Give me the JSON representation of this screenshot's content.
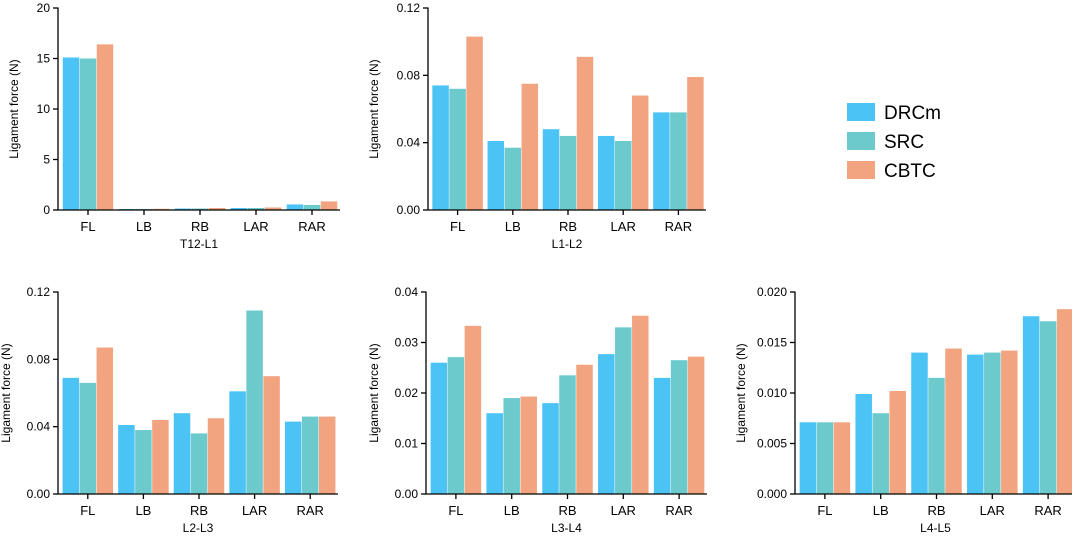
{
  "series_colors": {
    "DRCm": "#4CC3F5",
    "SRC": "#6CCACC",
    "CBTC": "#F2A481"
  },
  "legend": [
    "DRCm",
    "SRC",
    "CBTC"
  ],
  "chart_data": [
    {
      "type": "bar",
      "title": "T12-L1",
      "ylabel": "Ligament force  (N)",
      "ylim": [
        0,
        20
      ],
      "yticks": [
        "0",
        "5",
        "10",
        "15",
        "20"
      ],
      "categories": [
        "FL",
        "LB",
        "RB",
        "LAR",
        "RAR"
      ],
      "series": [
        {
          "name": "DRCm",
          "values": [
            15.1,
            0.1,
            0.15,
            0.2,
            0.55
          ]
        },
        {
          "name": "SRC",
          "values": [
            15.0,
            0.1,
            0.15,
            0.2,
            0.5
          ]
        },
        {
          "name": "CBTC",
          "values": [
            16.4,
            0.12,
            0.2,
            0.25,
            0.85
          ]
        }
      ]
    },
    {
      "type": "bar",
      "title": "L1-L2",
      "ylabel": "Ligament force  (N)",
      "ylim": [
        0,
        0.12
      ],
      "yticks": [
        "0.00",
        "0.04",
        "0.08",
        "0.12"
      ],
      "categories": [
        "FL",
        "LB",
        "RB",
        "LAR",
        "RAR"
      ],
      "series": [
        {
          "name": "DRCm",
          "values": [
            0.074,
            0.041,
            0.048,
            0.044,
            0.058
          ]
        },
        {
          "name": "SRC",
          "values": [
            0.072,
            0.037,
            0.044,
            0.041,
            0.058
          ]
        },
        {
          "name": "CBTC",
          "values": [
            0.103,
            0.075,
            0.091,
            0.068,
            0.079
          ]
        }
      ]
    },
    {
      "type": "bar",
      "title": "L2-L3",
      "ylabel": "Ligament force  (N)",
      "ylim": [
        0,
        0.12
      ],
      "yticks": [
        "0.00",
        "0.04",
        "0.08",
        "0.12"
      ],
      "categories": [
        "FL",
        "LB",
        "RB",
        "LAR",
        "RAR"
      ],
      "series": [
        {
          "name": "DRCm",
          "values": [
            0.069,
            0.041,
            0.048,
            0.061,
            0.043
          ]
        },
        {
          "name": "SRC",
          "values": [
            0.066,
            0.038,
            0.036,
            0.109,
            0.046
          ]
        },
        {
          "name": "CBTC",
          "values": [
            0.087,
            0.044,
            0.045,
            0.07,
            0.046
          ]
        }
      ]
    },
    {
      "type": "bar",
      "title": "L3-L4",
      "ylabel": "Ligament force  (N)",
      "ylim": [
        0,
        0.04
      ],
      "yticks": [
        "0.00",
        "0.01",
        "0.02",
        "0.03",
        "0.04"
      ],
      "categories": [
        "FL",
        "LB",
        "RB",
        "LAR",
        "RAR"
      ],
      "series": [
        {
          "name": "DRCm",
          "values": [
            0.026,
            0.016,
            0.018,
            0.0277,
            0.023
          ]
        },
        {
          "name": "SRC",
          "values": [
            0.0271,
            0.019,
            0.0235,
            0.033,
            0.0265
          ]
        },
        {
          "name": "CBTC",
          "values": [
            0.0333,
            0.0193,
            0.0256,
            0.0353,
            0.0272
          ]
        }
      ]
    },
    {
      "type": "bar",
      "title": "L4-L5",
      "ylabel": "Ligament force  (N)",
      "ylim": [
        0,
        0.02
      ],
      "yticks": [
        "0.000",
        "0.005",
        "0.010",
        "0.015",
        "0.020"
      ],
      "categories": [
        "FL",
        "LB",
        "RB",
        "LAR",
        "RAR"
      ],
      "series": [
        {
          "name": "DRCm",
          "values": [
            0.0071,
            0.0099,
            0.014,
            0.0138,
            0.0176
          ]
        },
        {
          "name": "SRC",
          "values": [
            0.0071,
            0.008,
            0.0115,
            0.014,
            0.0171
          ]
        },
        {
          "name": "CBTC",
          "values": [
            0.0071,
            0.0102,
            0.0144,
            0.0142,
            0.0183
          ]
        }
      ]
    }
  ]
}
